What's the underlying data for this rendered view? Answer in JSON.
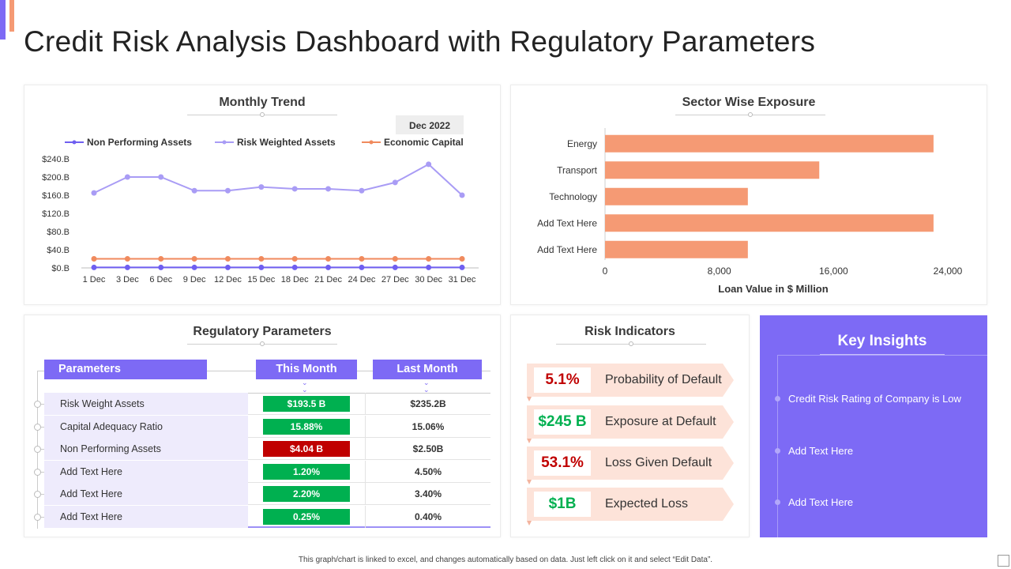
{
  "title": "Credit Risk Analysis Dashboard with Regulatory Parameters",
  "colors": {
    "accent": "#7d6af5",
    "orange": "#f59a74",
    "green": "#00b050",
    "red": "#c00000",
    "npa_line": "#6f5ff0",
    "rwa_line": "#a99cf5",
    "ec_line": "#f08a5d"
  },
  "monthly_trend": {
    "title": "Monthly Trend",
    "badge": "Dec 2022",
    "legend": [
      "Non Performing Assets",
      "Risk Weighted Assets",
      "Economic Capital"
    ],
    "chart_data": {
      "type": "line",
      "x": [
        "1 Dec",
        "3 Dec",
        "6 Dec",
        "9 Dec",
        "12 Dec",
        "15 Dec",
        "18 Dec",
        "21 Dec",
        "24 Dec",
        "27 Dec",
        "30 Dec",
        "31 Dec"
      ],
      "y_ticks": [
        "$0.B",
        "$40.B",
        "$80.B",
        "$120.B",
        "$160.B",
        "$200.B",
        "$240.B"
      ],
      "ylim": [
        0,
        240
      ],
      "series": [
        {
          "name": "Non Performing Assets",
          "values": [
            1,
            1,
            1,
            1,
            1,
            1,
            1,
            1,
            1,
            1,
            1,
            1
          ]
        },
        {
          "name": "Risk Weighted Assets",
          "values": [
            165,
            200,
            200,
            170,
            170,
            178,
            174,
            174,
            170,
            188,
            228,
            160
          ]
        },
        {
          "name": "Economic Capital",
          "values": [
            20,
            20,
            20,
            20,
            20,
            20,
            20,
            20,
            20,
            20,
            20,
            20
          ]
        }
      ]
    }
  },
  "sector_exposure": {
    "title": "Sector Wise Exposure",
    "chart_data": {
      "type": "bar",
      "orientation": "horizontal",
      "categories": [
        "Energy",
        "Transport",
        "Technology",
        "Add Text Here",
        "Add Text Here"
      ],
      "values": [
        23000,
        15000,
        10000,
        23000,
        10000
      ],
      "xlim": [
        0,
        24000
      ],
      "x_ticks": [
        "0",
        "8,000",
        "16,000",
        "24,000"
      ],
      "xlabel": "Loan Value in $ Million"
    }
  },
  "regulatory": {
    "title": "Regulatory Parameters",
    "headers": {
      "param": "Parameters",
      "this_month": "This Month",
      "last_month": "Last Month"
    },
    "rows": [
      {
        "name": "Risk Weight Assets",
        "this_month": "$193.5 B",
        "last_month": "$235.2B",
        "status": "good"
      },
      {
        "name": "Capital Adequacy Ratio",
        "this_month": "15.88%",
        "last_month": "15.06%",
        "status": "good"
      },
      {
        "name": "Non Performing Assets",
        "this_month": "$4.04 B",
        "last_month": "$2.50B",
        "status": "bad"
      },
      {
        "name": "Add Text Here",
        "this_month": "1.20%",
        "last_month": "4.50%",
        "status": "good"
      },
      {
        "name": "Add Text Here",
        "this_month": "2.20%",
        "last_month": "3.40%",
        "status": "good"
      },
      {
        "name": "Add Text Here",
        "this_month": "0.25%",
        "last_month": "0.40%",
        "status": "good"
      }
    ]
  },
  "risk_indicators": {
    "title": "Risk Indicators",
    "items": [
      {
        "value": "5.1%",
        "label": "Probability of Default",
        "status": "bad"
      },
      {
        "value": "$245 B",
        "label": "Exposure at Default",
        "status": "good"
      },
      {
        "value": "53.1%",
        "label": "Loss Given Default",
        "status": "bad"
      },
      {
        "value": "$1B",
        "label": "Expected Loss",
        "status": "good"
      }
    ]
  },
  "key_insights": {
    "title": "Key Insights",
    "items": [
      "Credit Risk Rating of Company  is Low",
      "Add Text Here",
      "Add Text Here"
    ]
  },
  "footer": "This graph/chart is linked to excel, and changes automatically based on data. Just left click on it and select “Edit Data”."
}
